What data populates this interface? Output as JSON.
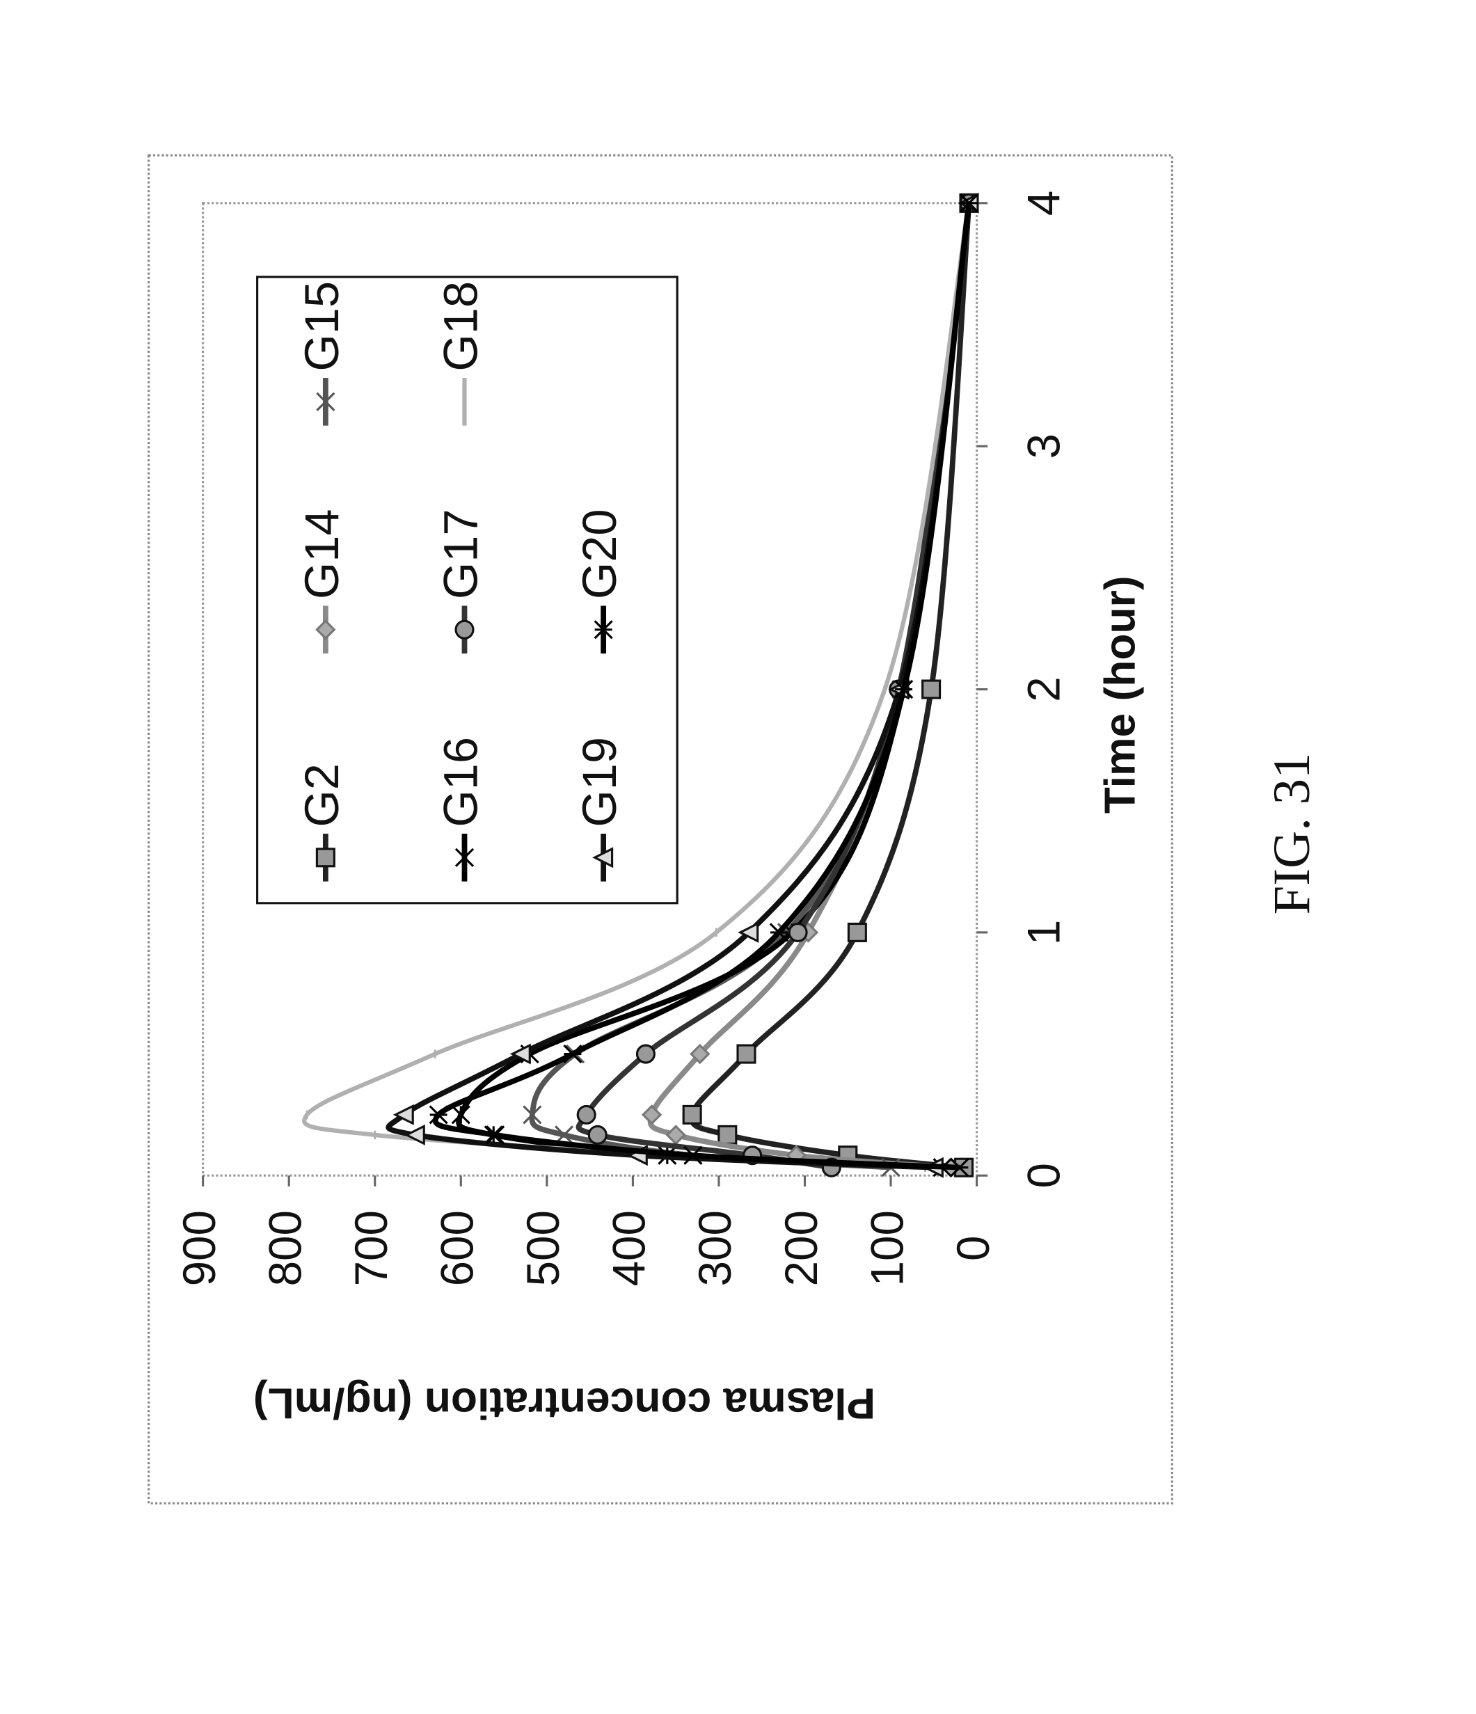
{
  "chart_data": {
    "type": "line",
    "x_label": "Time (hour)",
    "y_label": "Plasma concentration (ng/mL)",
    "caption": "FIG. 31",
    "x": [
      0.033,
      0.083,
      0.167,
      0.25,
      0.5,
      1,
      2,
      4
    ],
    "xlim": [
      0,
      4
    ],
    "xticks": [
      0,
      1,
      2,
      3,
      4
    ],
    "ylim": [
      0,
      900
    ],
    "yticks": [
      0,
      100,
      200,
      300,
      400,
      500,
      600,
      700,
      800,
      900
    ],
    "series": [
      {
        "name": "G2",
        "color": "#222222",
        "marker": "square",
        "values": [
          15,
          150,
          290,
          331,
          268,
          139,
          53,
          9
        ]
      },
      {
        "name": "G14",
        "color": "#8a8a8a",
        "marker": "diamond",
        "values": [
          30,
          210,
          350,
          378,
          322,
          196,
          88,
          9
        ]
      },
      {
        "name": "G15",
        "color": "#555555",
        "marker": "x",
        "values": [
          100,
          330,
          480,
          517,
          467,
          221,
          88,
          9
        ]
      },
      {
        "name": "G16",
        "color": "#000000",
        "marker": "star",
        "values": [
          40,
          360,
          562,
          600,
          520,
          215,
          85,
          9
        ]
      },
      {
        "name": "G17",
        "color": "#333333",
        "marker": "circle",
        "values": [
          169,
          261,
          441,
          454,
          385,
          208,
          91,
          9
        ]
      },
      {
        "name": "G18",
        "color": "#b0b0b0",
        "marker": "dash",
        "values": [
          60,
          350,
          700,
          779,
          630,
          303,
          107,
          9
        ]
      },
      {
        "name": "G19",
        "color": "#111111",
        "marker": "triangle",
        "values": [
          50,
          394,
          653,
          666,
          530,
          265,
          90,
          9
        ]
      },
      {
        "name": "G20",
        "color": "#000000",
        "marker": "xstar",
        "values": [
          20,
          330,
          560,
          626,
          470,
          230,
          85,
          9
        ]
      }
    ]
  }
}
